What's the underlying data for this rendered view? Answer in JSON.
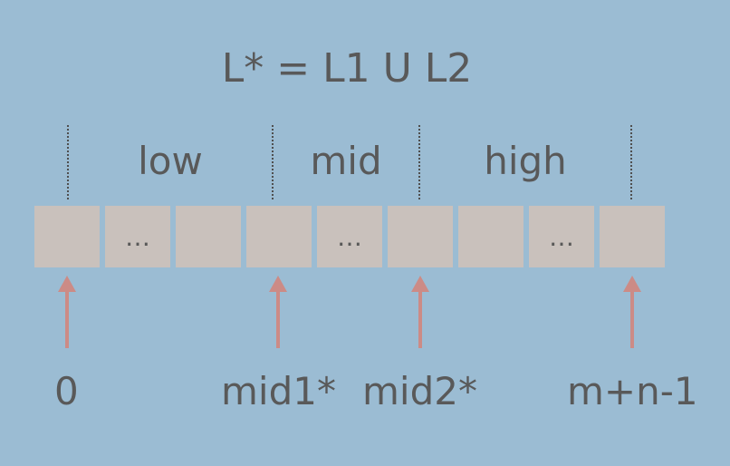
{
  "title": "L* = L1 U L2",
  "regions": [
    {
      "label": "low"
    },
    {
      "label": "mid"
    },
    {
      "label": "high"
    }
  ],
  "cells": [
    {
      "text": ""
    },
    {
      "text": "…"
    },
    {
      "text": ""
    },
    {
      "text": ""
    },
    {
      "text": "…"
    },
    {
      "text": ""
    },
    {
      "text": ""
    },
    {
      "text": "…"
    },
    {
      "text": ""
    }
  ],
  "indices": [
    {
      "label": "0"
    },
    {
      "label": "mid1*"
    },
    {
      "label": "mid2*"
    },
    {
      "label": "m+n-1"
    }
  ],
  "colors": {
    "background": "#9bbcd3",
    "cell": "#c9c1bc",
    "arrow": "#cc8b86",
    "text": "#595959"
  }
}
